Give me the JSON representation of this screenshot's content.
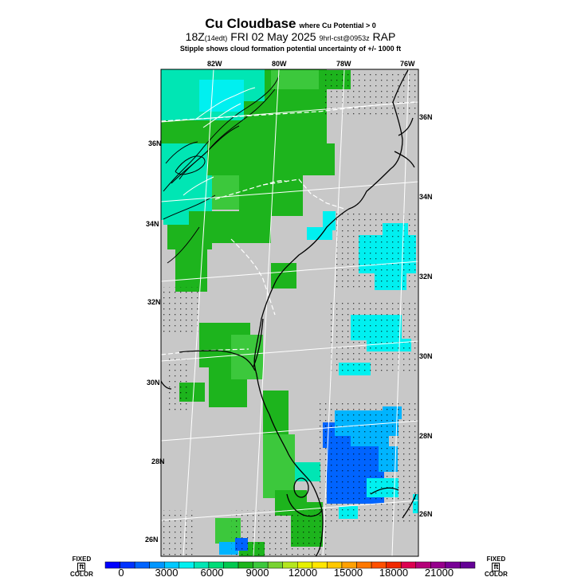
{
  "title": {
    "main": "Cu Cloudbase",
    "qualifier": "where Cu Potential > 0",
    "time": "18Z",
    "local": "(14edt)",
    "date": "FRI 02 May 2025",
    "run": "9hrl-cst@0953z",
    "model": "RAP",
    "note": "Stipple shows cloud formation potential uncertainty of +/-  1000 ft"
  },
  "map": {
    "lon_labels": [
      "82W",
      "80W",
      "78W",
      "76W"
    ],
    "lat_labels_right": [
      "36N",
      "34N",
      "32N",
      "30N",
      "28N",
      "26N"
    ],
    "lat_labels_left": [
      "36N",
      "34N",
      "32N",
      "30N",
      "28N",
      "26N"
    ],
    "colors": {
      "land_bg": "#c8c8c8",
      "green": "#1db41d",
      "green_light": "#3cc83c",
      "aqua": "#00e6b4",
      "cyan": "#00f0f0",
      "sky": "#00b4ff",
      "blue": "#0064ff",
      "coast": "#000000",
      "grid": "#ffffff"
    }
  },
  "colorbar": {
    "label_left_top": "FIXED",
    "label_unit": "ft",
    "label_left_bottom": "COLOR",
    "label_right_top": "FIXED",
    "label_right_bottom": "COLOR",
    "ticks": [
      "0",
      "3000",
      "6000",
      "9000",
      "12000",
      "15000",
      "18000",
      "21000"
    ],
    "colors": [
      "#0000ff",
      "#0032ff",
      "#0064ff",
      "#0096ff",
      "#00c8ff",
      "#00f0f0",
      "#00e6b4",
      "#00dc78",
      "#00c850",
      "#1db41d",
      "#3cc83c",
      "#78d232",
      "#b4e61e",
      "#e6f000",
      "#ffe600",
      "#ffc800",
      "#ffa000",
      "#ff7800",
      "#ff5000",
      "#f02800",
      "#dc0050",
      "#b40078",
      "#96008c",
      "#780096",
      "#640096"
    ]
  }
}
